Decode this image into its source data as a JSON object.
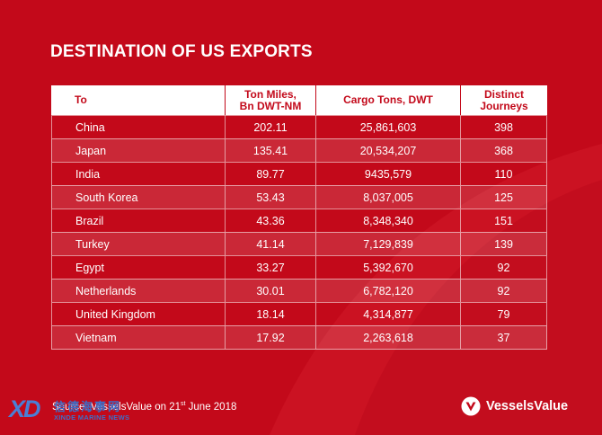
{
  "title": "DESTINATION OF US EXPORTS",
  "table": {
    "headers": {
      "to": "To",
      "ton_miles": [
        "Ton Miles,",
        "Bn DWT-NM"
      ],
      "cargo_tons": "Cargo Tons, DWT",
      "journeys": [
        "Distinct",
        "Journeys"
      ]
    },
    "rows": [
      {
        "to": "China",
        "ton_miles": "202.11",
        "cargo_tons": "25,861,603",
        "journeys": "398"
      },
      {
        "to": "Japan",
        "ton_miles": "135.41",
        "cargo_tons": "20,534,207",
        "journeys": "368"
      },
      {
        "to": "India",
        "ton_miles": "89.77",
        "cargo_tons": "9435,579",
        "journeys": "110"
      },
      {
        "to": "South Korea",
        "ton_miles": "53.43",
        "cargo_tons": "8,037,005",
        "journeys": "125"
      },
      {
        "to": "Brazil",
        "ton_miles": "43.36",
        "cargo_tons": "8,348,340",
        "journeys": "151"
      },
      {
        "to": "Turkey",
        "ton_miles": "41.14",
        "cargo_tons": "7,129,839",
        "journeys": "139"
      },
      {
        "to": "Egypt",
        "ton_miles": "33.27",
        "cargo_tons": "5,392,670",
        "journeys": "92"
      },
      {
        "to": "Netherlands",
        "ton_miles": "30.01",
        "cargo_tons": "6,782,120",
        "journeys": "92"
      },
      {
        "to": "United Kingdom",
        "ton_miles": "18.14",
        "cargo_tons": "4,314,877",
        "journeys": "79"
      },
      {
        "to": "Vietnam",
        "ton_miles": "17.92",
        "cargo_tons": "2,263,618",
        "journeys": "37"
      }
    ]
  },
  "source": {
    "prefix": "Source: VesselsValue on 21",
    "sup": "st",
    "suffix": " June 2018"
  },
  "brand": {
    "name": "VesselsValue"
  },
  "watermark": {
    "logo": "XD",
    "cn": "信德海事网",
    "en": "XINDE MARINE NEWS"
  },
  "colors": {
    "background": "#c3091a",
    "header_bg": "#ffffff",
    "header_text": "#c3091a",
    "text": "#ffffff",
    "watermark": "#3c6fc8"
  }
}
